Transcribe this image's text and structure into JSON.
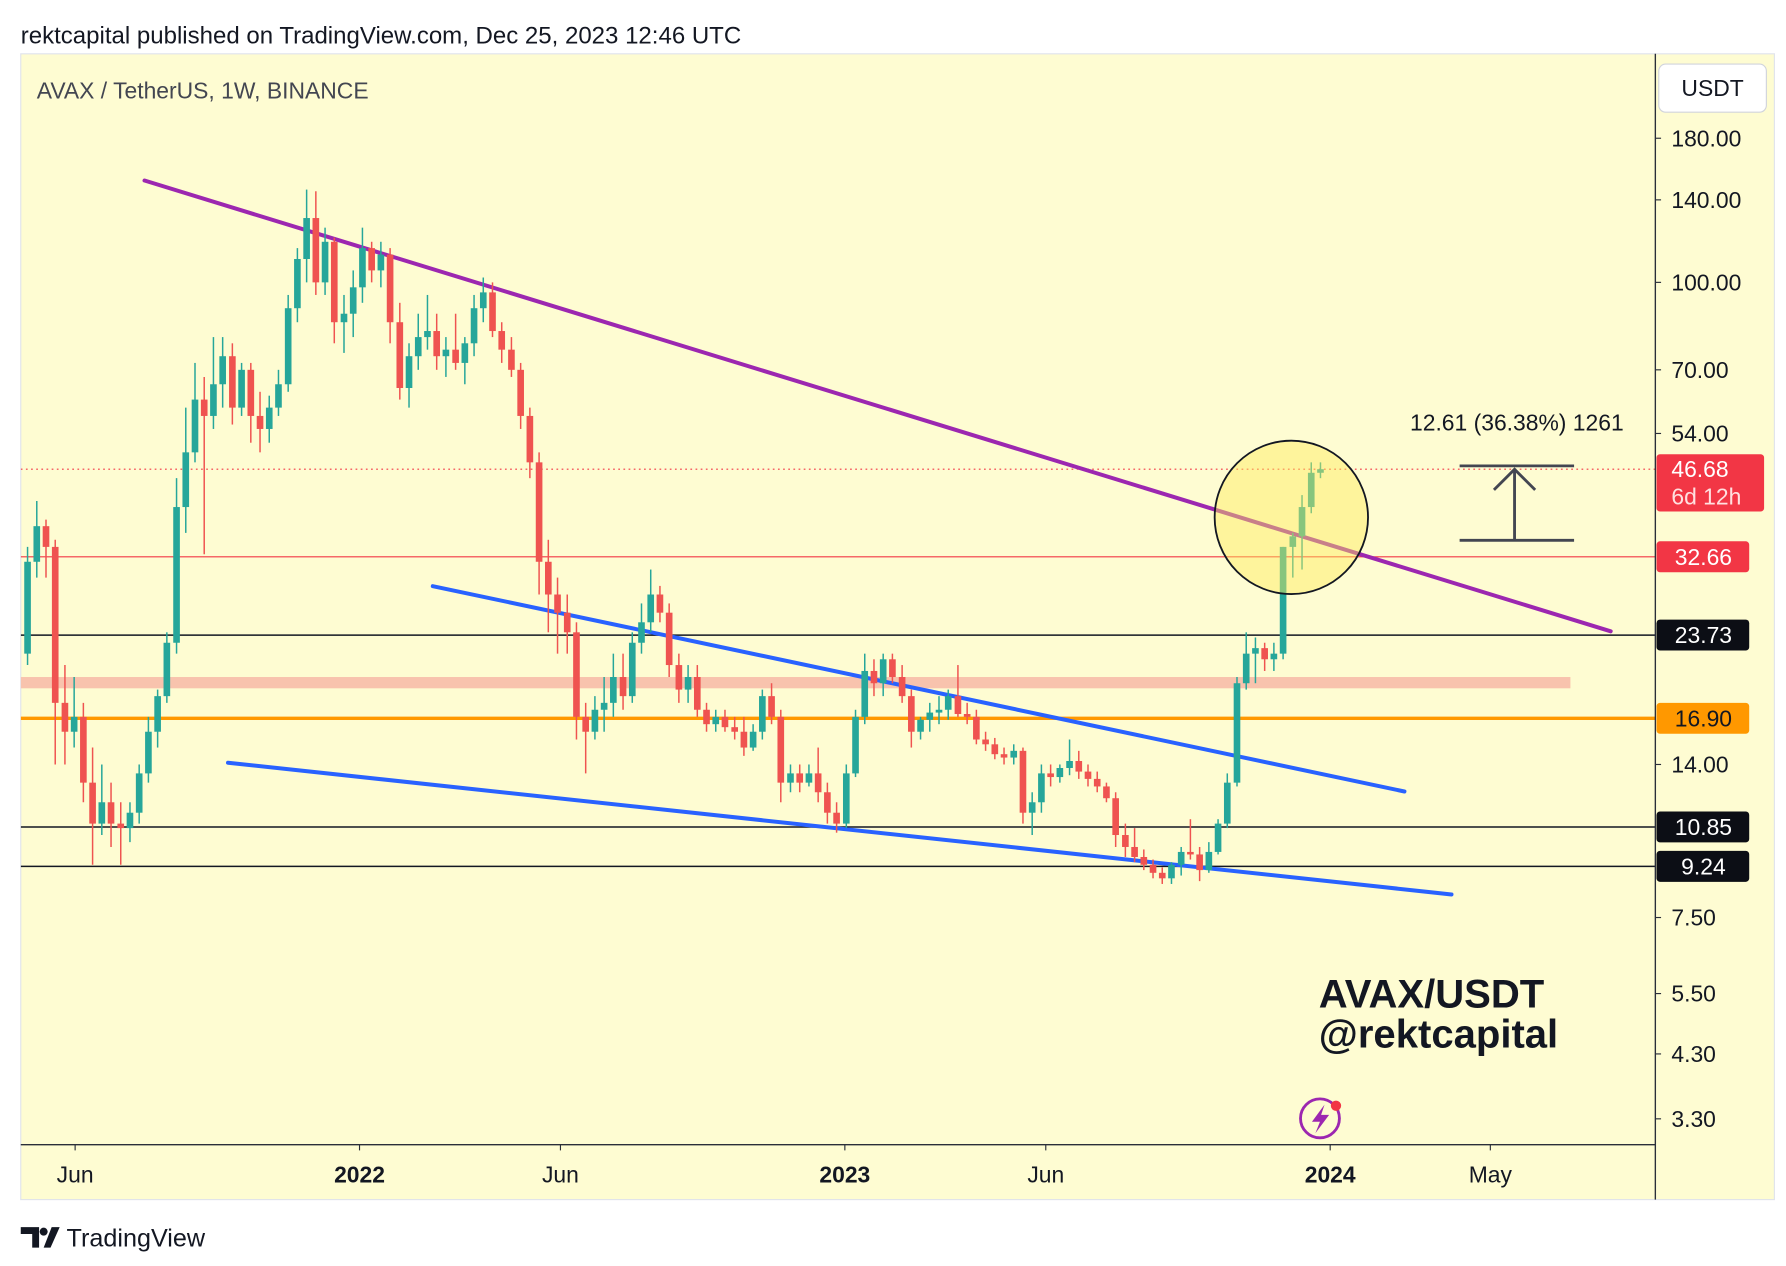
{
  "page": {
    "header": "rektcapital published on TradingView.com, Dec 25, 2023 12:46 UTC",
    "footer": "TradingView"
  },
  "chart_data": {
    "type": "candlestick",
    "title": "AVAX / TetherUS, 1W, BINANCE",
    "currency": "USDT",
    "watermark": [
      "AVAX/USDT",
      "@rektcapital"
    ],
    "measure": "12.61 (36.38%) 1261",
    "countdown": "6d 12h",
    "log_scale": true,
    "up_color": "#26a69a",
    "down_color": "#ef5350",
    "xlim": [
      2021.302,
      2024.67
    ],
    "xticks": [
      {
        "value": 2021.414,
        "label": "Jun"
      },
      2022,
      {
        "value": 2022.414,
        "label": "Jun"
      },
      2023,
      {
        "value": 2023.414,
        "label": "Jun"
      },
      2024,
      {
        "value": 2024.33,
        "label": "May"
      }
    ],
    "ylim": [
      2.97,
      254
    ],
    "yticks": [
      {
        "value": 180,
        "label": "180.00"
      },
      {
        "value": 140,
        "label": "140.00"
      },
      {
        "value": 100,
        "label": "100.00"
      },
      {
        "value": 70,
        "label": "70.00"
      },
      {
        "value": 54,
        "label": "54.00"
      },
      {
        "value": 14,
        "label": "14.00"
      },
      {
        "value": 7.5,
        "label": "7.50"
      },
      {
        "value": 5.5,
        "label": "5.50"
      },
      {
        "value": 4.3,
        "label": "4.30"
      },
      {
        "value": 3.3,
        "label": "3.30"
      }
    ],
    "x": [
      2021.316,
      2021.335,
      2021.354,
      2021.373,
      2021.393,
      2021.412,
      2021.431,
      2021.45,
      2021.469,
      2021.488,
      2021.508,
      2021.527,
      2021.546,
      2021.565,
      2021.584,
      2021.603,
      2021.623,
      2021.642,
      2021.661,
      2021.68,
      2021.699,
      2021.718,
      2021.738,
      2021.757,
      2021.776,
      2021.795,
      2021.814,
      2021.833,
      2021.853,
      2021.872,
      2021.891,
      2021.91,
      2021.929,
      2021.948,
      2021.968,
      2021.987,
      2022.006,
      2022.025,
      2022.044,
      2022.063,
      2022.083,
      2022.102,
      2022.121,
      2022.14,
      2022.159,
      2022.178,
      2022.198,
      2022.217,
      2022.236,
      2022.255,
      2022.274,
      2022.293,
      2022.313,
      2022.332,
      2022.351,
      2022.37,
      2022.389,
      2022.408,
      2022.428,
      2022.447,
      2022.466,
      2022.485,
      2022.504,
      2022.523,
      2022.543,
      2022.562,
      2022.581,
      2022.6,
      2022.619,
      2022.638,
      2022.658,
      2022.677,
      2022.696,
      2022.715,
      2022.734,
      2022.753,
      2022.773,
      2022.792,
      2022.811,
      2022.83,
      2022.849,
      2022.868,
      2022.888,
      2022.907,
      2022.926,
      2022.945,
      2022.964,
      2022.983,
      2023.003,
      2023.022,
      2023.041,
      2023.06,
      2023.079,
      2023.098,
      2023.118,
      2023.137,
      2023.156,
      2023.175,
      2023.194,
      2023.213,
      2023.233,
      2023.252,
      2023.271,
      2023.29,
      2023.309,
      2023.328,
      2023.348,
      2023.367,
      2023.386,
      2023.405,
      2023.424,
      2023.443,
      2023.463,
      2023.482,
      2023.501,
      2023.52,
      2023.539,
      2023.558,
      2023.578,
      2023.597,
      2023.616,
      2023.635,
      2023.654,
      2023.673,
      2023.693,
      2023.712,
      2023.731,
      2023.75,
      2023.769,
      2023.788,
      2023.808,
      2023.827,
      2023.846,
      2023.865,
      2023.884,
      2023.903,
      2023.923,
      2023.942,
      2023.961,
      2023.98
    ],
    "open": [
      22,
      32,
      37,
      34,
      18,
      16,
      17,
      13,
      11,
      12,
      11,
      10.8,
      11.5,
      13.5,
      16,
      18.5,
      23,
      40,
      50,
      62,
      58,
      66,
      74,
      60,
      70,
      58,
      55,
      60,
      66,
      90,
      110,
      130,
      100,
      118,
      85,
      88,
      98,
      115,
      105,
      112,
      85,
      65,
      74,
      80,
      82,
      74,
      76,
      72,
      78,
      90,
      96,
      82,
      76,
      70,
      58,
      48,
      32,
      28,
      26,
      24,
      17,
      16,
      17.5,
      18,
      20,
      18.5,
      23,
      25,
      28,
      26,
      21,
      19,
      20,
      17.5,
      16.5,
      17,
      16.3,
      16,
      15,
      16,
      18.5,
      17,
      13,
      13.5,
      13,
      13.5,
      12.5,
      11.5,
      11,
      13.5,
      17,
      20.5,
      19.5,
      21.5,
      20,
      18.5,
      16,
      16.8,
      17.3,
      17.5,
      18.5,
      17.2,
      17,
      15.5,
      15.2,
      14.6,
      14.4,
      14.8,
      11.5,
      12,
      13.5,
      13.3,
      13.8,
      14.2,
      13.6,
      13.2,
      12.8,
      12.2,
      10.5,
      10,
      9.6,
      9.3,
      9.0,
      8.8,
      9.3,
      9.8,
      9.7,
      9.1,
      9.8,
      11,
      13,
      19.5,
      22,
      22.5,
      21.5,
      22,
      34,
      35.5,
      40,
      46
    ],
    "high": [
      34,
      41,
      38,
      35,
      21,
      20,
      18,
      15,
      14,
      13,
      12,
      12,
      14,
      17,
      19,
      24,
      45,
      60,
      72,
      68,
      80,
      80,
      78,
      72,
      72,
      64,
      63,
      70,
      95,
      115,
      146,
      145,
      125,
      120,
      95,
      105,
      125,
      118,
      118,
      115,
      92,
      78,
      88,
      95,
      88,
      80,
      88,
      80,
      95,
      102,
      100,
      85,
      80,
      72,
      60,
      50,
      35,
      30,
      28,
      25,
      18,
      18.5,
      20,
      22,
      22,
      24,
      27,
      31,
      29,
      27,
      22,
      21,
      21,
      18,
      17.5,
      17.5,
      17,
      17,
      16.5,
      19,
      19.5,
      17.5,
      14,
      14,
      14,
      15,
      13,
      12,
      14,
      17.5,
      22,
      21.5,
      22,
      22,
      21,
      19,
      17,
      18,
      18.5,
      19,
      21,
      18,
      17.5,
      16,
      15.6,
      15,
      15.2,
      15,
      12.5,
      14,
      14,
      14,
      15.5,
      14.8,
      14,
      13.6,
      13,
      12.5,
      11,
      10.8,
      9.9,
      9.5,
      9.2,
      9.4,
      10,
      11.2,
      10,
      10.2,
      11.2,
      13.5,
      20,
      24,
      23.5,
      23,
      23,
      34,
      36,
      42,
      48,
      48
    ],
    "low": [
      21,
      30,
      30,
      14,
      14,
      15,
      12,
      9.3,
      10.5,
      10,
      9.3,
      10.2,
      11,
      13,
      15,
      18,
      22,
      36,
      48,
      33,
      55,
      60,
      56,
      58,
      52,
      50,
      52,
      58,
      64,
      85,
      100,
      95,
      95,
      78,
      75,
      80,
      92,
      100,
      98,
      78,
      62,
      60,
      70,
      76,
      70,
      68,
      70,
      66,
      74,
      85,
      80,
      72,
      68,
      55,
      45,
      28,
      24,
      22,
      22,
      15.5,
      13.5,
      15.5,
      16,
      17,
      17.5,
      18,
      22,
      24,
      25,
      20,
      18,
      18,
      17,
      16,
      16,
      16,
      15.5,
      14.5,
      14.8,
      15.5,
      16.5,
      12,
      12.5,
      12.5,
      12.8,
      12,
      11,
      10.6,
      10.8,
      13.3,
      16.5,
      18.5,
      18.5,
      19.5,
      18,
      15,
      15.5,
      16,
      16.5,
      16.8,
      17,
      16.5,
      15.2,
      14.8,
      14.3,
      14,
      14,
      11,
      10.5,
      11.5,
      12.8,
      13,
      13.4,
      13.2,
      12.8,
      12.5,
      12,
      10,
      9.6,
      9.4,
      9.1,
      8.8,
      8.6,
      8.6,
      8.9,
      9.5,
      8.7,
      9,
      9.7,
      10.8,
      12.8,
      19,
      19.5,
      20.5,
      20.5,
      21.5,
      30,
      31,
      39,
      45
    ],
    "close": [
      32,
      37,
      34,
      18,
      16,
      17,
      13,
      11,
      12,
      11,
      10.8,
      11.5,
      13.5,
      16,
      18.5,
      23,
      40,
      50,
      62,
      58,
      66,
      74,
      60,
      70,
      58,
      55,
      60,
      66,
      90,
      110,
      130,
      100,
      118,
      85,
      88,
      98,
      115,
      105,
      112,
      85,
      65,
      74,
      80,
      82,
      74,
      76,
      72,
      78,
      90,
      96,
      82,
      76,
      70,
      58,
      48,
      32,
      28,
      26,
      24,
      17,
      16,
      17.5,
      18,
      20,
      18.5,
      23,
      25,
      28,
      26,
      21,
      19,
      20,
      17.5,
      16.5,
      17,
      16.3,
      16,
      15,
      16,
      18.5,
      17,
      13,
      13.5,
      13,
      13.5,
      12.5,
      11.5,
      11,
      13.5,
      17,
      20.5,
      19.5,
      21.5,
      20,
      18.5,
      16,
      16.8,
      17.3,
      17.5,
      18.5,
      17.2,
      17,
      15.5,
      15.2,
      14.6,
      14.4,
      14.8,
      11.5,
      12,
      13.5,
      13.3,
      13.8,
      14.2,
      13.6,
      13.2,
      12.8,
      12.2,
      10.5,
      10,
      9.6,
      9.3,
      9.0,
      8.8,
      9.3,
      9.8,
      9.7,
      9.1,
      9.8,
      11,
      13,
      19.5,
      22,
      22.5,
      21.5,
      22,
      34,
      35.5,
      40,
      46,
      46.68
    ],
    "last_color": "#f23645",
    "zone": {
      "range": [
        19.1,
        20.0
      ],
      "end": 2024.495,
      "color": "#f8c3ad"
    },
    "levels": [
      {
        "value": 32.66,
        "color": "#f23645",
        "width": 1,
        "box": "#f23645",
        "text_color": "#ffffff"
      },
      {
        "value": 23.73,
        "color": "#131722",
        "width": 1.3,
        "box": "#0c0e15",
        "text_color": "#ffffff"
      },
      {
        "value": 16.9,
        "label": "16.90",
        "color": "#ff9800",
        "width": 3,
        "box": "#ff9800",
        "text_color": "#131722"
      },
      {
        "value": 10.85,
        "color": "#131722",
        "width": 1.3,
        "box": "#0c0e15",
        "text_color": "#ffffff"
      },
      {
        "value": 9.24,
        "color": "#131722",
        "width": 1.3,
        "box": "#0c0e15",
        "text_color": "#ffffff"
      }
    ],
    "trendlines": [
      {
        "x": [
          2021.557,
          2024.578
        ],
        "y": [
          151.5,
          24.1
        ],
        "color": "#9c27b0"
      },
      {
        "x": [
          2022.151,
          2024.153
        ],
        "y": [
          28.97,
          12.54
        ],
        "color": "#2962ff"
      },
      {
        "x": [
          2021.729,
          2024.25
        ],
        "y": [
          14.1,
          8.24
        ],
        "color": "#2962ff"
      }
    ]
  }
}
